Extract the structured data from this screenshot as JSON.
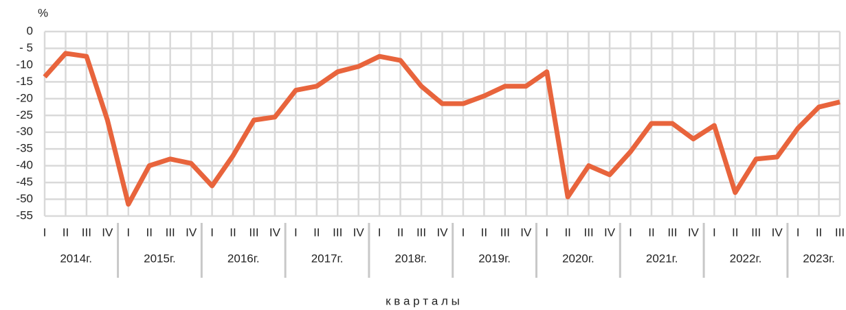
{
  "chart_data": {
    "type": "line",
    "y_unit": "%",
    "x_label": "к в а р т а л ы",
    "categories": [
      "I",
      "II",
      "III",
      "IV",
      "I",
      "II",
      "III",
      "IV",
      "I",
      "II",
      "III",
      "IV",
      "I",
      "II",
      "III",
      "IV",
      "I",
      "II",
      "III",
      "IV",
      "I",
      "II",
      "III",
      "IV",
      "I",
      "II",
      "III",
      "IV",
      "I",
      "II",
      "III",
      "IV",
      "I",
      "II",
      "III",
      "IV",
      "I",
      "II",
      "III"
    ],
    "groups": [
      "2014г.",
      "2015г.",
      "2016г.",
      "2017г.",
      "2018г.",
      "2019г.",
      "2020г.",
      "2021г.",
      "2022г.",
      "2023г."
    ],
    "series": [
      {
        "color": "#e8643c",
        "values": [
          -13.5,
          -6.5,
          -7.4,
          -26.4,
          -51.5,
          -40,
          -38,
          -39.3,
          -46,
          -37,
          -26.4,
          -25.5,
          -17.5,
          -16.3,
          -12,
          -10.4,
          -7.4,
          -8.6,
          -16.3,
          -21.5,
          -21.5,
          -19.2,
          -16.3,
          -16.3,
          -12,
          -49.3,
          -40,
          -42.7,
          -35.8,
          -27.4,
          -27.4,
          -32,
          -28,
          -48,
          -38,
          -37.4,
          -28.8,
          -22.5,
          -21
        ]
      }
    ],
    "ylim": [
      0,
      -55
    ],
    "yticks": [
      0,
      {
        "value": -5,
        "label": "- 5"
      },
      -10,
      -15,
      -20,
      -25,
      -30,
      -35,
      -40,
      -45,
      -50,
      -55
    ],
    "grid": true
  }
}
